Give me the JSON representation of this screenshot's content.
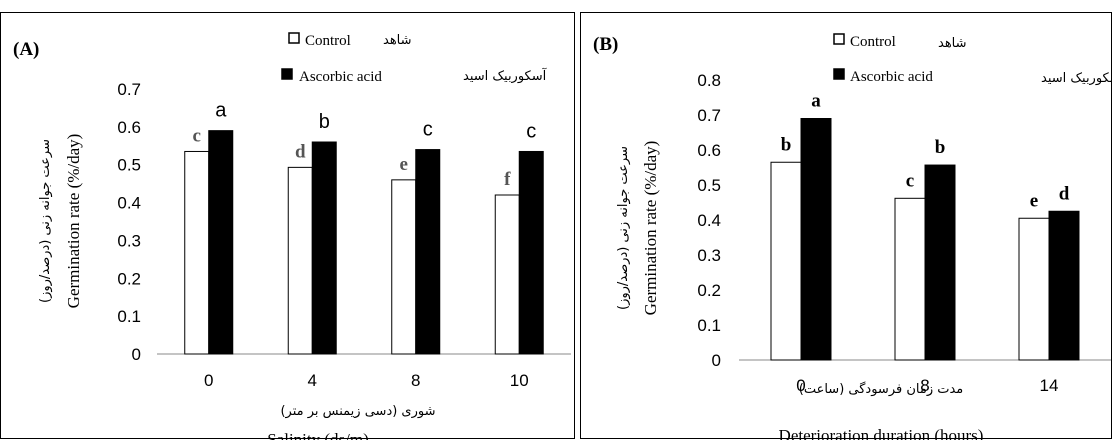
{
  "chart_data": [
    {
      "type": "bar",
      "panel_label": "(A)",
      "categories": [
        "0",
        "4",
        "8",
        "10"
      ],
      "series": [
        {
          "name": "Control",
          "name_fa": "شاهد",
          "fill": "#ffffff",
          "values": [
            0.535,
            0.493,
            0.46,
            0.42
          ],
          "letters": [
            "c",
            "d",
            "e",
            "f"
          ]
        },
        {
          "name": "Ascorbic acid",
          "name_fa": "آسکوربیک اسید",
          "fill": "#000000",
          "values": [
            0.59,
            0.56,
            0.54,
            0.535
          ],
          "letters": [
            "a",
            "b",
            "c",
            "c"
          ]
        }
      ],
      "ylim": [
        0,
        0.7
      ],
      "yticks": [
        "0",
        "0.1",
        "0.2",
        "0.3",
        "0.4",
        "0.5",
        "0.6",
        "0.7"
      ],
      "ylabel": "Germination rate (%/day)",
      "ylabel_fa": "سرعت جوانه زنی (درصد/روز)",
      "xlabel": "Salinity (ds/m)",
      "xlabel_fa": "شوری (دسی زیمنس بر متر)"
    },
    {
      "type": "bar",
      "panel_label": "(B)",
      "categories": [
        "0",
        "8",
        "14"
      ],
      "series": [
        {
          "name": "Control",
          "name_fa": "شاهد",
          "fill": "#ffffff",
          "values": [
            0.565,
            0.462,
            0.405
          ],
          "letters": [
            "b",
            "c",
            "e"
          ]
        },
        {
          "name": "Ascorbic acid",
          "name_fa": "آسکوربیک اسید",
          "fill": "#000000",
          "values": [
            0.69,
            0.557,
            0.425
          ],
          "letters": [
            "a",
            "b",
            "d"
          ]
        }
      ],
      "ylim": [
        0,
        0.8
      ],
      "yticks": [
        "0",
        "0.1",
        "0.2",
        "0.3",
        "0.4",
        "0.5",
        "0.6",
        "0.7",
        "0.8"
      ],
      "ylabel": "Germination rate (%/day)",
      "ylabel_fa": "سرعت جوانه زنی (درصد/روز)",
      "xlabel": "Deterioration duration (hours)",
      "xlabel_fa": "مدت زمان فرسودگی (ساعت)"
    }
  ]
}
